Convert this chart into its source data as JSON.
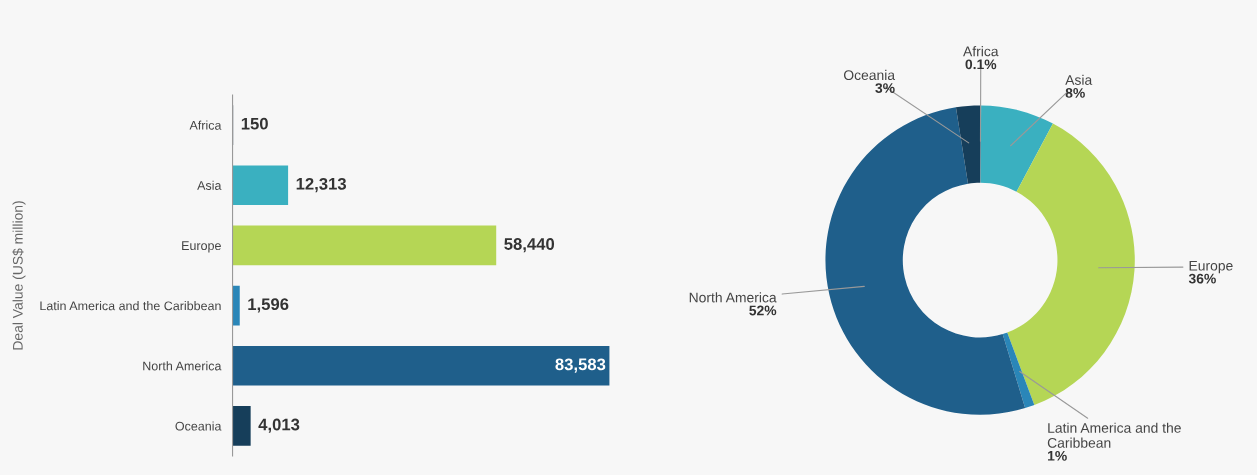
{
  "chart_data": [
    {
      "type": "bar",
      "orientation": "horizontal",
      "ylabel": "Deal Value (US$ million)",
      "categories": [
        "Africa",
        "Asia",
        "Europe",
        "Latin America and the Caribbean",
        "North America",
        "Oceania"
      ],
      "values": [
        150,
        12313,
        58440,
        1596,
        83583,
        4013
      ],
      "colors": [
        "#5a6b7a",
        "#3ab0c0",
        "#b5d655",
        "#2a86b8",
        "#1f5f8b",
        "#163e5a"
      ],
      "value_labels": [
        "150",
        "12,313",
        "58,440",
        "1,596",
        "83,583",
        "4,013"
      ],
      "tick_labels": "y"
    },
    {
      "type": "donut",
      "categories": [
        "Africa",
        "Asia",
        "Europe",
        "Latin America and the Caribbean",
        "North America",
        "Oceania"
      ],
      "values": [
        0.1,
        7.7,
        36.5,
        1.0,
        52.2,
        2.5
      ],
      "value_labels": [
        "0.1%",
        "8%",
        "36%",
        "1%",
        "52%",
        "3%"
      ],
      "colors": [
        "#5a6b7a",
        "#3ab0c0",
        "#b5d655",
        "#2a86b8",
        "#1f5f8b",
        "#163e5a"
      ]
    }
  ]
}
